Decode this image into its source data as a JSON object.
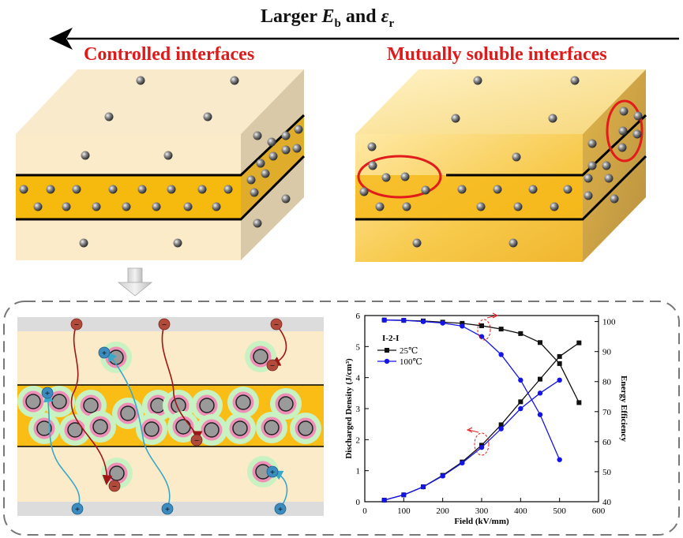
{
  "header": {
    "prefix": "Larger ",
    "e_symbol": "E",
    "e_sub": "b",
    "and": " and ",
    "eps_symbol": "ε",
    "eps_sub": "r"
  },
  "panels": {
    "left_title": "Controlled interfaces",
    "right_title": "Mutually soluble interfaces"
  },
  "mechanism": {
    "negative_sign": "−",
    "positive_sign": "+"
  },
  "chart_data": {
    "type": "line",
    "annotation": "I-2-I",
    "xlabel": "Field (kV/mm)",
    "ylabel_left": "Discharged Density (J/cm³)",
    "ylabel_right": "Energy Efficiency",
    "xlim": [
      0,
      600
    ],
    "ylim_left": [
      0,
      6
    ],
    "ylim_right": [
      40,
      102
    ],
    "x_ticks": [
      "0",
      "100",
      "200",
      "300",
      "400",
      "500",
      "600"
    ],
    "y_left_ticks": [
      "0",
      "1",
      "2",
      "3",
      "4",
      "5",
      "6"
    ],
    "y_right_ticks": [
      "40",
      "50",
      "60",
      "70",
      "80",
      "90",
      "100"
    ],
    "legend": [
      "25℃",
      "100℃"
    ],
    "colors": {
      "s25": "#111111",
      "s100": "#1414e6"
    },
    "series": [
      {
        "name": "25℃",
        "axis": "left",
        "x": [
          50,
          100,
          150,
          200,
          250,
          300,
          350,
          400,
          450,
          500,
          550
        ],
        "values": [
          0.05,
          0.22,
          0.48,
          0.85,
          1.28,
          1.82,
          2.48,
          3.22,
          3.95,
          4.68,
          5.12
        ]
      },
      {
        "name": "100℃",
        "axis": "left",
        "x": [
          50,
          100,
          150,
          200,
          250,
          300,
          350,
          400,
          450,
          500
        ],
        "values": [
          0.05,
          0.22,
          0.48,
          0.83,
          1.25,
          1.75,
          2.35,
          3.0,
          3.5,
          3.92
        ]
      },
      {
        "name": "25℃",
        "axis": "right",
        "x": [
          50,
          100,
          150,
          200,
          250,
          300,
          350,
          400,
          450,
          500,
          550
        ],
        "values": [
          100.5,
          100.4,
          100.2,
          99.8,
          99.4,
          98.6,
          97.5,
          96.0,
          93.0,
          86.0,
          73.0
        ]
      },
      {
        "name": "100℃",
        "axis": "right",
        "x": [
          50,
          100,
          150,
          200,
          250,
          300,
          350,
          400,
          450,
          500
        ],
        "values": [
          100.5,
          100.4,
          100.0,
          99.5,
          98.5,
          95.0,
          89.0,
          80.5,
          69.0,
          54.0
        ]
      }
    ]
  }
}
